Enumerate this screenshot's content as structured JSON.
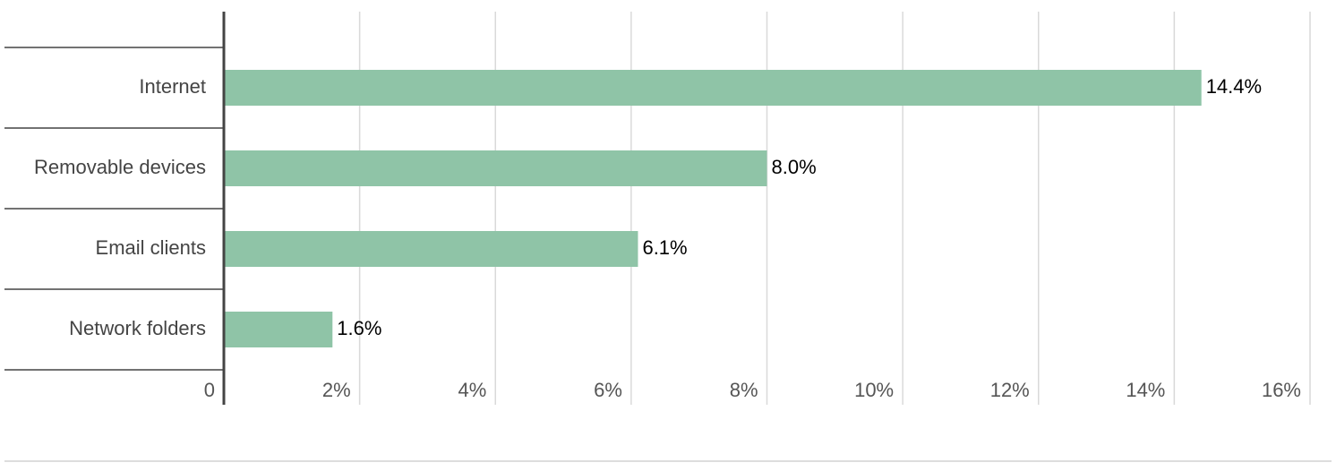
{
  "chart_data": {
    "type": "bar",
    "orientation": "horizontal",
    "categories": [
      "Internet",
      "Removable devices",
      "Email clients",
      "Network folders"
    ],
    "values": [
      14.4,
      8.0,
      6.1,
      1.6
    ],
    "value_labels": [
      "14.4%",
      "8.0%",
      "6.1%",
      "1.6%"
    ],
    "color": "#8fc4a7",
    "xlim": [
      0,
      16
    ],
    "xticks": [
      0,
      {
        "value": 2,
        "label": "2%"
      },
      {
        "value": 4,
        "label": "4%"
      },
      {
        "value": 6,
        "label": "6%"
      },
      {
        "value": 8,
        "label": "8%"
      },
      {
        "value": 10,
        "label": "10%"
      },
      {
        "value": 12,
        "label": "12%"
      },
      {
        "value": 14,
        "label": "14%"
      },
      {
        "value": 16,
        "label": "16%"
      }
    ],
    "grid": true
  }
}
